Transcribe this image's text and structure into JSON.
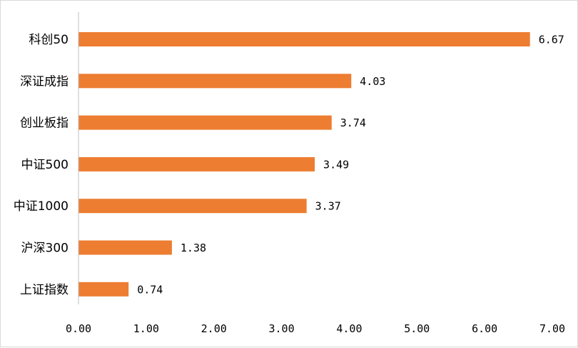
{
  "chart_data": {
    "type": "bar",
    "orientation": "horizontal",
    "categories": [
      "科创50",
      "深证成指",
      "创业板指",
      "中证500",
      "中证1000",
      "沪深300",
      "上证指数"
    ],
    "values": [
      6.67,
      4.03,
      3.74,
      3.49,
      3.37,
      1.38,
      0.74
    ],
    "value_labels": [
      "6.67",
      "4.03",
      "3.74",
      "3.49",
      "3.37",
      "1.38",
      "0.74"
    ],
    "xlim": [
      0,
      7
    ],
    "x_ticks": [
      0,
      1,
      2,
      3,
      4,
      5,
      6,
      7
    ],
    "x_tick_labels": [
      "0.00",
      "1.00",
      "2.00",
      "3.00",
      "4.00",
      "5.00",
      "6.00",
      "7.00"
    ],
    "title": "",
    "xlabel": "",
    "ylabel": "",
    "grid": false,
    "legend": "none",
    "bar_color": "#ED7D31",
    "axis_color": "#BFBFBF",
    "text_color": "#000000"
  }
}
